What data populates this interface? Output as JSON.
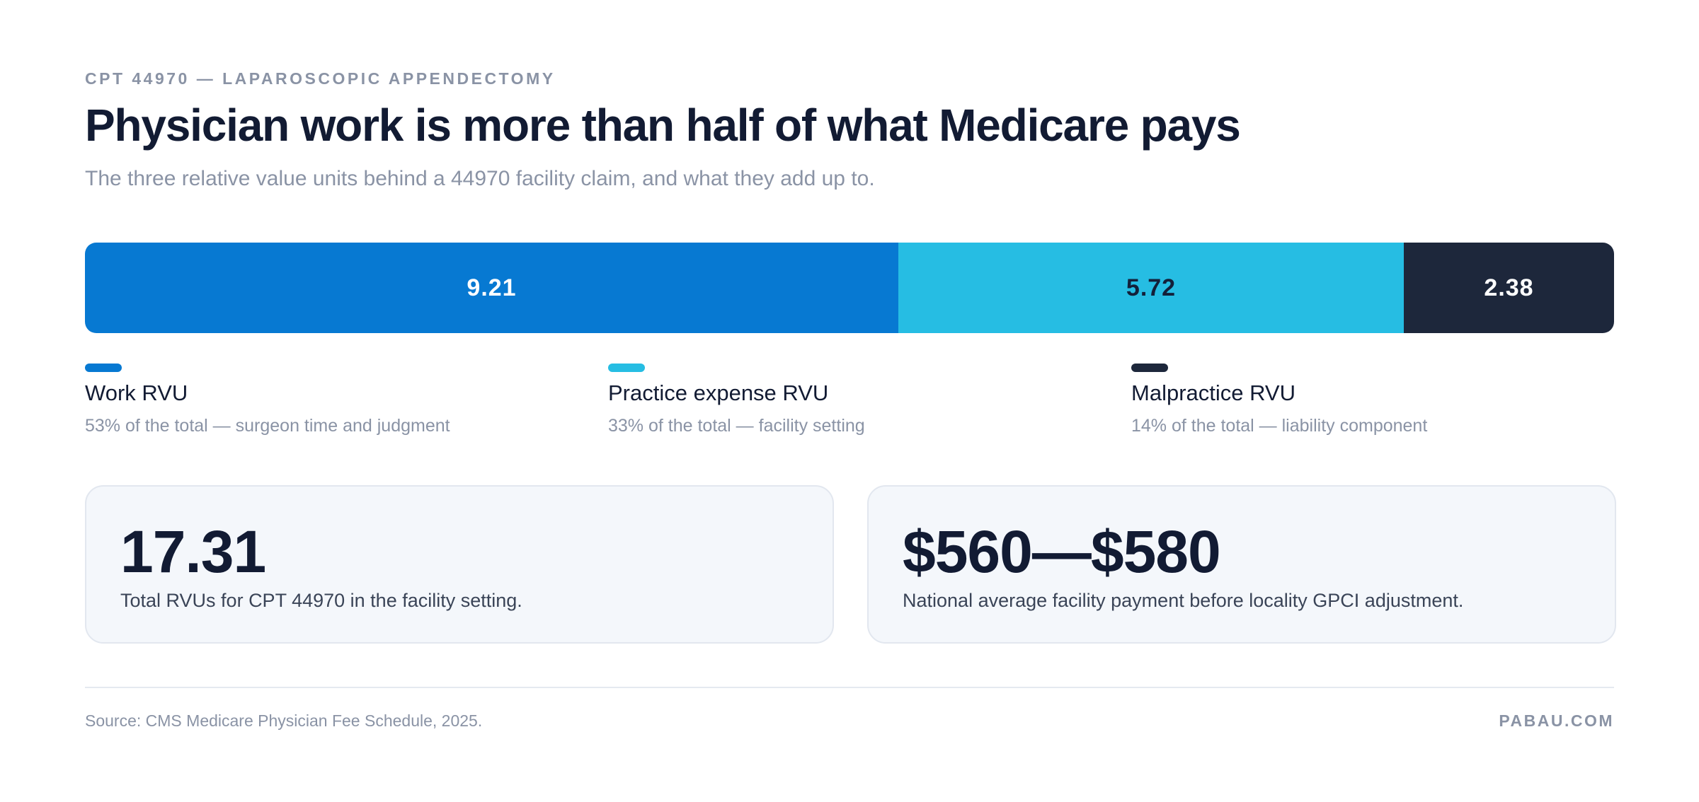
{
  "header": {
    "eyebrow": "CPT 44970 — LAPAROSCOPIC APPENDECTOMY",
    "title": "Physician work is more than half of what Medicare pays",
    "subtitle": "The three relative value units behind a 44970 facility claim, and what they add up to."
  },
  "chart_data": {
    "type": "bar",
    "orientation": "horizontal-stacked",
    "categories": [
      "Work RVU",
      "Practice expense RVU",
      "Malpractice RVU"
    ],
    "series": [
      {
        "name": "Work RVU",
        "value": 9.21,
        "label": "9.21",
        "color": "#0779d2",
        "text_color": "#ffffff"
      },
      {
        "name": "Practice expense RVU",
        "value": 5.72,
        "label": "5.72",
        "color": "#26bde3",
        "text_color": "#13203a"
      },
      {
        "name": "Malpractice RVU",
        "value": 2.38,
        "label": "2.38",
        "color": "#1d273b",
        "text_color": "#ffffff"
      }
    ],
    "total": 17.31,
    "xlim": [
      0,
      17.31
    ],
    "grid": false,
    "legend_position": "bottom"
  },
  "legend": [
    {
      "name": "Work RVU",
      "desc": "53% of the total — surgeon time and judgment",
      "color": "#0779d2"
    },
    {
      "name": "Practice expense RVU",
      "desc": "33% of the total — facility setting",
      "color": "#26bde3"
    },
    {
      "name": "Malpractice RVU",
      "desc": "14% of the total — liability component",
      "color": "#1d273b"
    }
  ],
  "cards": [
    {
      "value": "17.31",
      "caption": "Total RVUs for CPT 44970 in the facility setting."
    },
    {
      "value": "$560—$580",
      "caption": "National average facility payment before locality GPCI adjustment."
    }
  ],
  "footer": {
    "source": "Source: CMS Medicare Physician Fee Schedule, 2025.",
    "brand": "PABAU.COM"
  }
}
